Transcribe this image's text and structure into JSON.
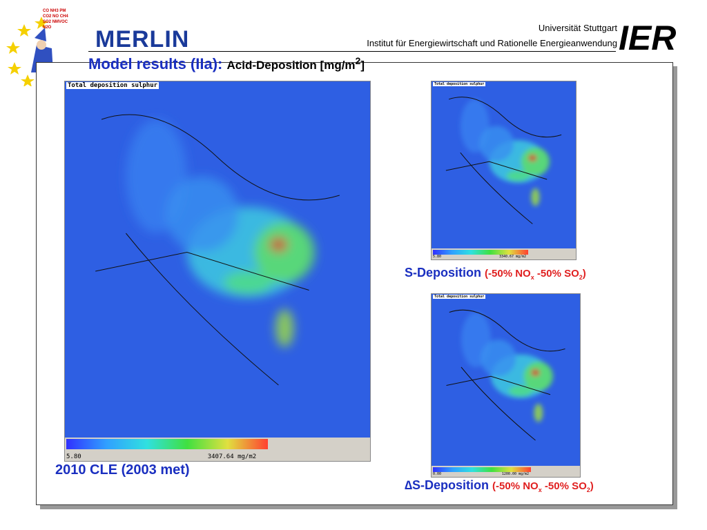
{
  "logo": {
    "labels": [
      "CO",
      "NH3",
      "PM",
      "CO2",
      "NO",
      "CH4",
      "SO2",
      "NMVOC",
      "N2O"
    ],
    "name": "MERLIN"
  },
  "header": {
    "university": "Universität Stuttgart",
    "institute": "Institut für Energiewirtschaft und Rationelle Energieanwendung",
    "brand": "IER"
  },
  "title": {
    "main": "Model results (IIa):",
    "sub": "Acid-Deposition [mg/m",
    "sub_sup": "2",
    "sub_end": "]"
  },
  "maps": [
    {
      "title": "Total deposition sulphur",
      "min": "5.80",
      "max": "3407.64 mg/m2",
      "caption": "2010 CLE (2003 met)"
    },
    {
      "title": "Total deposition sulphur",
      "min": "5.80",
      "max": "3340.67 mg/m2",
      "caption": "S-Deposition",
      "scenario": [
        "(-50% NO",
        "x",
        " -50% SO",
        "2",
        ")"
      ]
    },
    {
      "title": "Total deposition sulphur",
      "min": "0.00",
      "max": "1200.00 mg/m2",
      "caption": "∆S-Deposition",
      "scenario": [
        "(-50% NO",
        "x",
        " -50% SO",
        "2",
        ")"
      ]
    }
  ]
}
